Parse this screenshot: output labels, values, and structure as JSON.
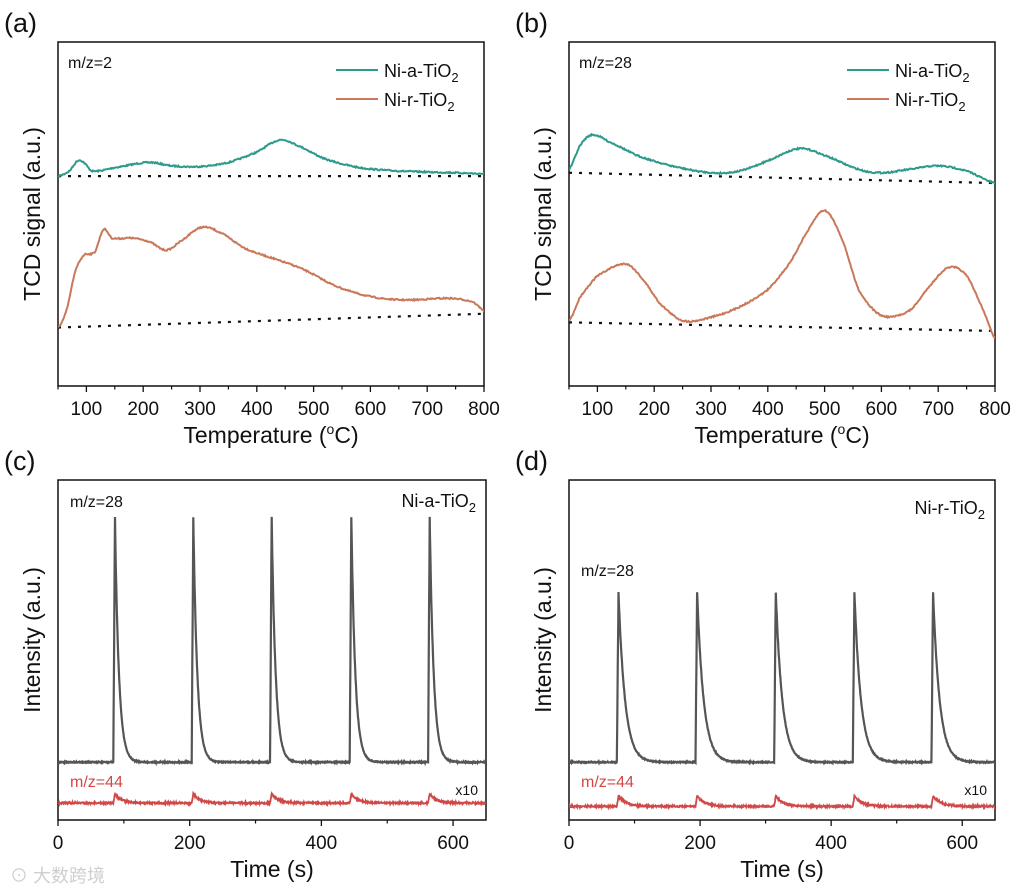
{
  "chart_data": [
    {
      "panel_label": "(a)",
      "type": "line",
      "annotation": "m/z=2",
      "xlabel": "Temperature (",
      "xlabel_sup": "o",
      "xlabel_end": "C)",
      "ylabel": "TCD signal (a.u.)",
      "xlim": [
        50,
        800
      ],
      "ylim": [
        0,
        1
      ],
      "xticks": [
        100,
        200,
        300,
        400,
        500,
        600,
        700,
        800
      ],
      "xtick_labels": [
        "100",
        "200",
        "300",
        "400",
        "500",
        "600",
        "700",
        "800"
      ],
      "minor_xticks": [
        50,
        150,
        250,
        350,
        450,
        550,
        650,
        750
      ],
      "legend": "top-right",
      "series": [
        {
          "name": "Ni-a-TiO",
          "sub": "2",
          "color": "#2e9a8c",
          "x": [
            50,
            70,
            85,
            95,
            110,
            150,
            210,
            250,
            300,
            350,
            400,
            440,
            470,
            520,
            580,
            650,
            750,
            800
          ],
          "y": [
            0.61,
            0.625,
            0.655,
            0.65,
            0.625,
            0.635,
            0.65,
            0.64,
            0.638,
            0.65,
            0.68,
            0.715,
            0.7,
            0.66,
            0.635,
            0.625,
            0.62,
            0.617
          ]
        },
        {
          "name": "Ni-r-TiO",
          "sub": "2",
          "color": "#c9785a",
          "x": [
            50,
            65,
            80,
            95,
            115,
            130,
            145,
            180,
            210,
            240,
            265,
            300,
            330,
            380,
            430,
            480,
            540,
            600,
            660,
            740,
            780,
            800
          ],
          "y": [
            0.17,
            0.22,
            0.33,
            0.38,
            0.39,
            0.455,
            0.43,
            0.43,
            0.42,
            0.395,
            0.42,
            0.46,
            0.45,
            0.4,
            0.37,
            0.34,
            0.29,
            0.26,
            0.25,
            0.255,
            0.245,
            0.22
          ]
        }
      ],
      "baselines": [
        {
          "x": [
            50,
            800
          ],
          "y": [
            0.61,
            0.61
          ]
        },
        {
          "x": [
            50,
            800
          ],
          "y": [
            0.17,
            0.21
          ]
        }
      ]
    },
    {
      "panel_label": "(b)",
      "type": "line",
      "annotation": "m/z=28",
      "xlabel": "Temperature (",
      "xlabel_sup": "o",
      "xlabel_end": "C)",
      "ylabel": "TCD signal (a.u.)",
      "xlim": [
        50,
        800
      ],
      "ylim": [
        0,
        1
      ],
      "xticks": [
        100,
        200,
        300,
        400,
        500,
        600,
        700,
        800
      ],
      "xtick_labels": [
        "100",
        "200",
        "300",
        "400",
        "500",
        "600",
        "700",
        "800"
      ],
      "minor_xticks": [
        50,
        150,
        250,
        350,
        450,
        550,
        650,
        750
      ],
      "legend": "top-right",
      "series": [
        {
          "name": "Ni-a-TiO",
          "sub": "2",
          "color": "#2e9a8c",
          "x": [
            50,
            70,
            90,
            120,
            170,
            230,
            300,
            350,
            400,
            455,
            500,
            560,
            600,
            650,
            700,
            750,
            800
          ],
          "y": [
            0.63,
            0.7,
            0.73,
            0.71,
            0.67,
            0.64,
            0.62,
            0.625,
            0.655,
            0.69,
            0.67,
            0.63,
            0.62,
            0.63,
            0.64,
            0.625,
            0.59
          ]
        },
        {
          "name": "Ni-r-TiO",
          "sub": "2",
          "color": "#c9785a",
          "x": [
            50,
            70,
            100,
            150,
            180,
            210,
            250,
            300,
            350,
            400,
            440,
            470,
            500,
            530,
            560,
            600,
            650,
            690,
            720,
            750,
            780,
            800
          ],
          "y": [
            0.19,
            0.26,
            0.32,
            0.355,
            0.31,
            0.24,
            0.19,
            0.2,
            0.23,
            0.28,
            0.36,
            0.45,
            0.51,
            0.43,
            0.28,
            0.205,
            0.22,
            0.3,
            0.345,
            0.32,
            0.22,
            0.14
          ]
        }
      ],
      "baselines": [
        {
          "x": [
            50,
            800
          ],
          "y": [
            0.62,
            0.59
          ]
        },
        {
          "x": [
            50,
            800
          ],
          "y": [
            0.185,
            0.16
          ]
        }
      ]
    },
    {
      "panel_label": "(c)",
      "type": "line",
      "annotation_top": "m/z=28",
      "annotation_bottom": "m/z=44",
      "scale_note": "x10",
      "sample_label": "Ni-a-TiO",
      "sample_sub": "2",
      "xlabel": "Time (s)",
      "ylabel": "Intensity (a.u.)",
      "xlim": [
        0,
        650
      ],
      "ylim": [
        0,
        1
      ],
      "xticks": [
        0,
        200,
        400,
        600
      ],
      "xtick_labels": [
        "0",
        "200",
        "400",
        "600"
      ],
      "minor_xticks": [
        100,
        300,
        500
      ],
      "series": [
        {
          "name": "m/z=28",
          "color": "#555555",
          "baseline": 0.17,
          "peak": 0.89,
          "decay_s": 6,
          "pulse_times": [
            84,
            203,
            322,
            443,
            562
          ]
        },
        {
          "name": "m/z=44",
          "color": "#d04848",
          "baseline": 0.05,
          "peak": 0.077,
          "decay_s": 10,
          "pulse_times": [
            84,
            203,
            322,
            443,
            562
          ]
        }
      ]
    },
    {
      "panel_label": "(d)",
      "type": "line",
      "annotation_top": "m/z=28",
      "annotation_bottom": "m/z=44",
      "scale_note": "x10",
      "sample_label": "Ni-r-TiO",
      "sample_sub": "2",
      "xlabel": "Time (s)",
      "ylabel": "Intensity (a.u.)",
      "xlim": [
        0,
        650
      ],
      "ylim": [
        0,
        1
      ],
      "xticks": [
        0,
        200,
        400,
        600
      ],
      "xtick_labels": [
        "0",
        "200",
        "400",
        "600"
      ],
      "minor_xticks": [
        100,
        300,
        500
      ],
      "series": [
        {
          "name": "m/z=28",
          "color": "#555555",
          "baseline": 0.17,
          "peak": 0.67,
          "decay_s": 10,
          "pulse_times": [
            73,
            193,
            313,
            433,
            553
          ]
        },
        {
          "name": "m/z=44",
          "color": "#d04848",
          "baseline": 0.04,
          "peak": 0.07,
          "decay_s": 12,
          "pulse_times": [
            73,
            193,
            313,
            433,
            553
          ]
        }
      ]
    }
  ],
  "watermark": "大数跨境"
}
